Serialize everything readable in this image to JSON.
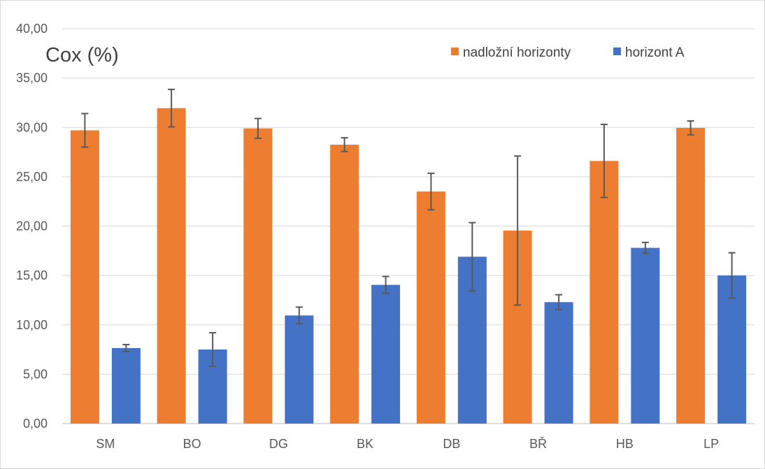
{
  "chart_data": {
    "type": "bar",
    "title": "",
    "ylabel": "Cox (%)",
    "xlabel": "",
    "categories": [
      "SM",
      "BO",
      "DG",
      "BK",
      "DB",
      "BŘ",
      "HB",
      "LP"
    ],
    "ylim": [
      0,
      40
    ],
    "ytick_labels": [
      "0,00",
      "5,00",
      "10,00",
      "15,00",
      "20,00",
      "25,00",
      "30,00",
      "35,00",
      "40,00"
    ],
    "grid": true,
    "legend_position": "top-right",
    "series": [
      {
        "name": "nadložní horizonty",
        "color": "#ED7D31",
        "values": [
          29.7,
          31.95,
          29.9,
          28.25,
          23.5,
          19.55,
          26.6,
          29.95
        ],
        "errors": [
          1.7,
          1.9,
          1.0,
          0.7,
          1.85,
          7.55,
          3.7,
          0.7
        ]
      },
      {
        "name": "horizont A",
        "color": "#4472C4",
        "values": [
          7.65,
          7.5,
          10.95,
          14.05,
          16.9,
          12.3,
          17.8,
          15.0
        ],
        "errors": [
          0.35,
          1.7,
          0.85,
          0.85,
          3.45,
          0.75,
          0.55,
          2.3
        ]
      }
    ]
  }
}
